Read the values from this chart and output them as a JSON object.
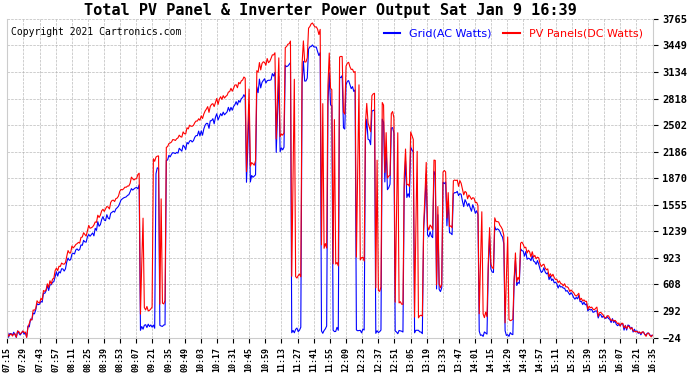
{
  "title": "Total PV Panel & Inverter Power Output Sat Jan 9 16:39",
  "copyright": "Copyright 2021 Cartronics.com",
  "legend_ac": "Grid(AC Watts)",
  "legend_dc": "PV Panels(DC Watts)",
  "legend_ac_color": "blue",
  "legend_dc_color": "red",
  "line_ac_color": "blue",
  "line_dc_color": "red",
  "background_color": "#ffffff",
  "grid_color": "#aaaaaa",
  "title_fontsize": 11,
  "copyright_fontsize": 7,
  "legend_fontsize": 8,
  "ylabel_values": [
    3765.0,
    3449.2,
    3133.5,
    2817.7,
    2502.0,
    2186.2,
    1870.5,
    1554.8,
    1239.0,
    923.3,
    607.5,
    291.8,
    -24.0
  ],
  "ymin": -24.0,
  "ymax": 3765.0,
  "x_labels": [
    "07:15",
    "07:29",
    "07:43",
    "07:57",
    "08:11",
    "08:25",
    "08:39",
    "08:53",
    "09:07",
    "09:21",
    "09:35",
    "09:49",
    "10:03",
    "10:17",
    "10:31",
    "10:45",
    "10:59",
    "11:13",
    "11:27",
    "11:41",
    "11:55",
    "12:09",
    "12:23",
    "12:37",
    "12:51",
    "13:05",
    "13:19",
    "13:33",
    "13:47",
    "14:01",
    "14:15",
    "14:29",
    "14:43",
    "14:57",
    "15:11",
    "15:25",
    "15:39",
    "15:53",
    "16:07",
    "16:21",
    "16:35"
  ]
}
